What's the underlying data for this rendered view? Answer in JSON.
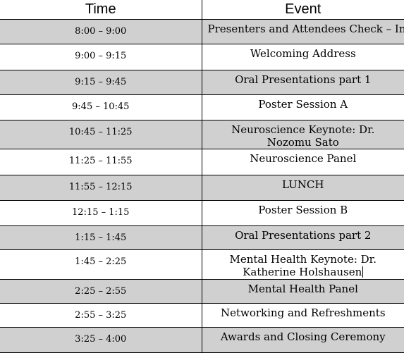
{
  "table": {
    "headers": {
      "time": "Time",
      "event": "Event"
    },
    "rows": [
      {
        "time": "8:00 – 9:00",
        "event": "Presenters and Attendees Check – In"
      },
      {
        "time": "9:00 – 9:15",
        "event": "Welcoming Address"
      },
      {
        "time": "9:15 – 9:45",
        "event": "Oral Presentations part 1"
      },
      {
        "time": "9:45 – 10:45",
        "event": "Poster Session A"
      },
      {
        "time": "10:45 – 11:25",
        "event": "Neuroscience Keynote: Dr. Nozomu Sato"
      },
      {
        "time": "11:25 – 11:55",
        "event": "Neuroscience Panel"
      },
      {
        "time": "11:55 – 12:15",
        "event": "LUNCH"
      },
      {
        "time": "12:15 – 1:15",
        "event": "Poster Session B"
      },
      {
        "time": "1:15 – 1:45",
        "event": "Oral Presentations part 2"
      },
      {
        "time": "1:45 – 2:25",
        "event": "Mental Health Keynote: Dr. Katherine Holshausen"
      },
      {
        "time": "2:25 – 2:55",
        "event": "Mental Health Panel"
      },
      {
        "time": "2:55 – 3:25",
        "event": "Networking and Refreshments"
      },
      {
        "time": "3:25 – 4:00",
        "event": "Awards and Closing Ceremony"
      }
    ]
  }
}
